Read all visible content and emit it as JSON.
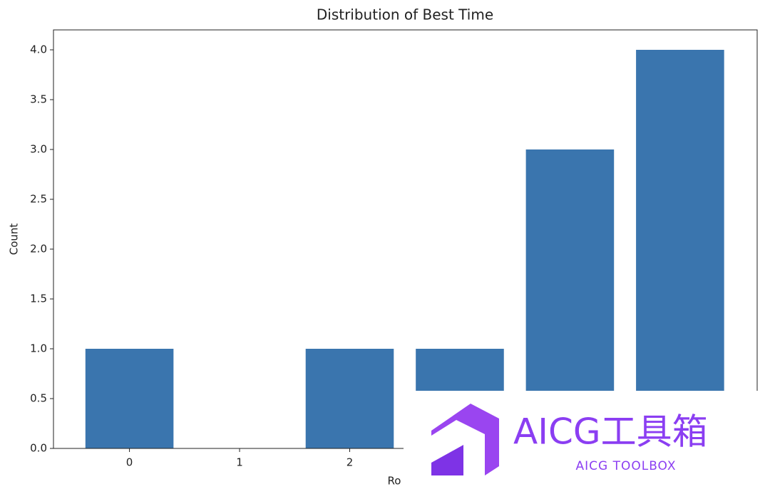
{
  "chart_data": {
    "type": "bar",
    "title": "Distribution of Best Time",
    "xlabel": "Ro",
    "ylabel": "Count",
    "categories": [
      "0",
      "1",
      "2",
      null,
      null,
      null
    ],
    "values": [
      1,
      0,
      1,
      1,
      3,
      4
    ],
    "color": "#3a75ae",
    "xlim": [
      -0.69,
      5.7
    ],
    "ylim": [
      0,
      4.2
    ],
    "yticks": [
      {
        "value": 0,
        "label": "0.0"
      },
      {
        "value": 0.5,
        "label": "0.5"
      },
      {
        "value": 1,
        "label": "1.0"
      },
      {
        "value": 1.5,
        "label": "1.5"
      },
      {
        "value": 2,
        "label": "2.0"
      },
      {
        "value": 2.5,
        "label": "2.5"
      },
      {
        "value": 3,
        "label": "3.0"
      },
      {
        "value": 3.5,
        "label": "3.5"
      },
      {
        "value": 4,
        "label": "4.0"
      }
    ],
    "grid": false
  },
  "watermark": {
    "title": "AICG工具箱",
    "subtitle": "AICG TOOLBOX"
  }
}
